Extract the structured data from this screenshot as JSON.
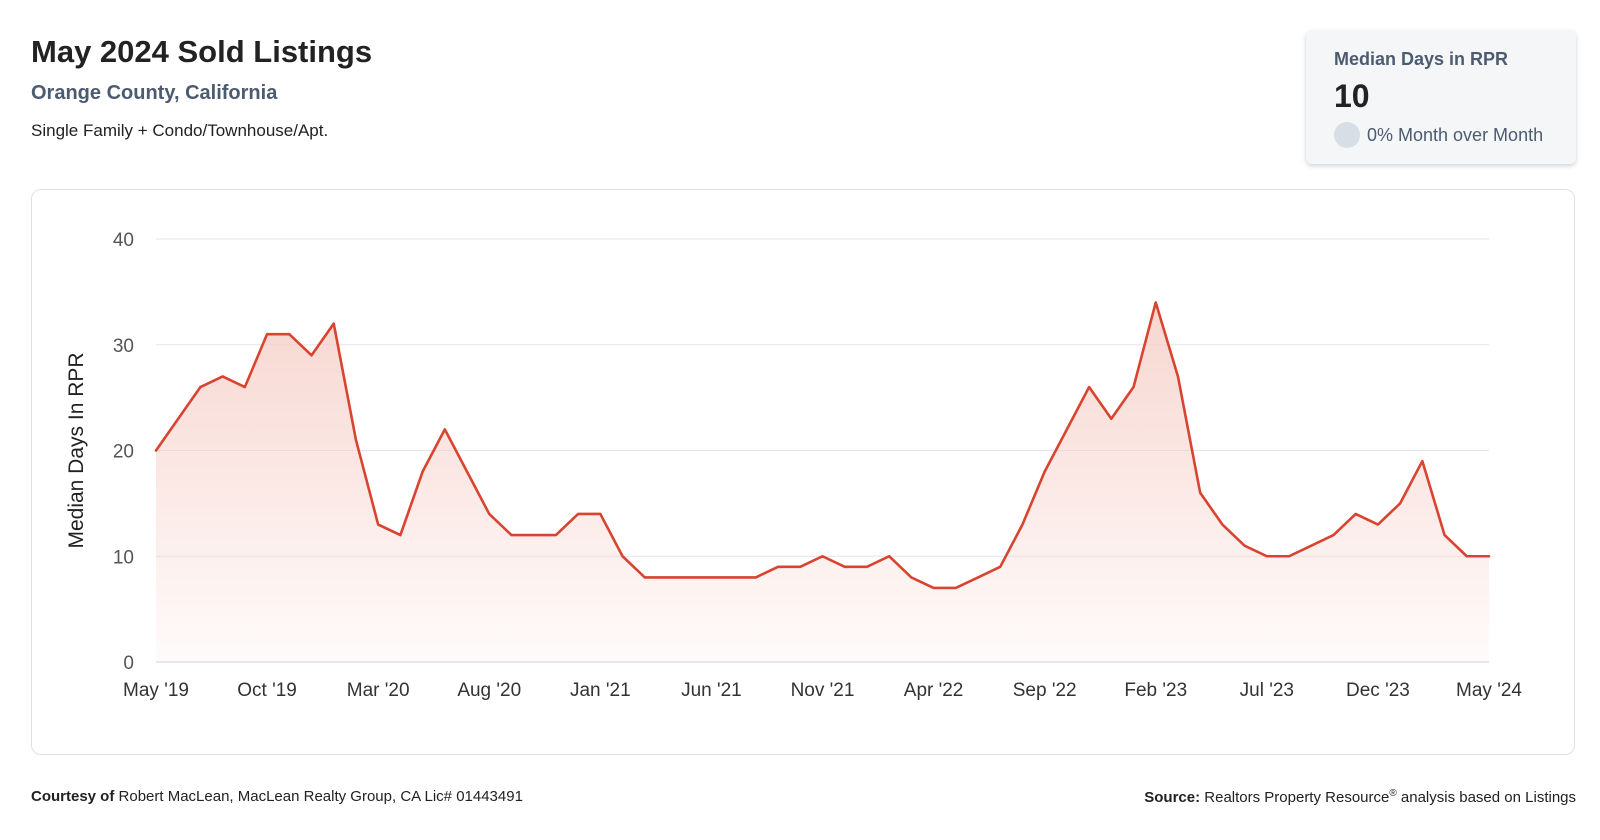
{
  "header": {
    "title": "May 2024 Sold Listings",
    "subtitle": "Orange County, California",
    "description": "Single Family + Condo/Townhouse/Apt."
  },
  "kpi": {
    "label": "Median Days in RPR",
    "value": "10",
    "change": "0% Month over Month"
  },
  "footer": {
    "courtesy_label": "Courtesy of",
    "courtesy_text": "Robert MacLean, MacLean Realty Group, CA Lic# 01443491",
    "source_label": "Source:",
    "source_text_before": "Realtors Property Resource",
    "source_sup": "®",
    "source_text_after": "analysis based on Listings"
  },
  "colors": {
    "line": "#d9432f",
    "fill_top": "#f6cfc8",
    "grid": "#e3e6ea",
    "axis_text": "#555555"
  },
  "chart_data": {
    "type": "area",
    "ylabel": "Median Days In RPR",
    "xlabel": "",
    "ylim": [
      0,
      40
    ],
    "yticks": [
      0,
      10,
      20,
      30,
      40
    ],
    "grid": true,
    "x": [
      "May '19",
      "Jun '19",
      "Jul '19",
      "Aug '19",
      "Sep '19",
      "Oct '19",
      "Nov '19",
      "Dec '19",
      "Jan '20",
      "Feb '20",
      "Mar '20",
      "Apr '20",
      "May '20",
      "Jun '20",
      "Jul '20",
      "Aug '20",
      "Sep '20",
      "Oct '20",
      "Nov '20",
      "Dec '20",
      "Jan '21",
      "Feb '21",
      "Mar '21",
      "Apr '21",
      "May '21",
      "Jun '21",
      "Jul '21",
      "Aug '21",
      "Sep '21",
      "Oct '21",
      "Nov '21",
      "Dec '21",
      "Jan '22",
      "Feb '22",
      "Mar '22",
      "Apr '22",
      "May '22",
      "Jun '22",
      "Jul '22",
      "Aug '22",
      "Sep '22",
      "Oct '22",
      "Nov '22",
      "Dec '22",
      "Jan '23",
      "Feb '23",
      "Mar '23",
      "Apr '23",
      "May '23",
      "Jun '23",
      "Jul '23",
      "Aug '23",
      "Sep '23",
      "Oct '23",
      "Nov '23",
      "Dec '23",
      "Jan '24",
      "Feb '24",
      "Mar '24",
      "Apr '24",
      "May '24"
    ],
    "x_tick_labels": [
      "May '19",
      "Oct '19",
      "Mar '20",
      "Aug '20",
      "Jan '21",
      "Jun '21",
      "Nov '21",
      "Apr '22",
      "Sep '22",
      "Feb '23",
      "Jul '23",
      "Dec '23",
      "May '24"
    ],
    "series": [
      {
        "values": [
          20,
          23,
          26,
          27,
          26,
          31,
          31,
          29,
          32,
          21,
          13,
          12,
          18,
          22,
          18,
          14,
          12,
          12,
          12,
          14,
          14,
          10,
          8,
          8,
          8,
          8,
          8,
          8,
          9,
          9,
          10,
          9,
          9,
          10,
          8,
          7,
          7,
          8,
          9,
          13,
          18,
          22,
          26,
          23,
          26,
          34,
          27,
          16,
          13,
          11,
          10,
          10,
          11,
          12,
          14,
          13,
          15,
          19,
          12,
          10,
          10
        ]
      }
    ]
  }
}
